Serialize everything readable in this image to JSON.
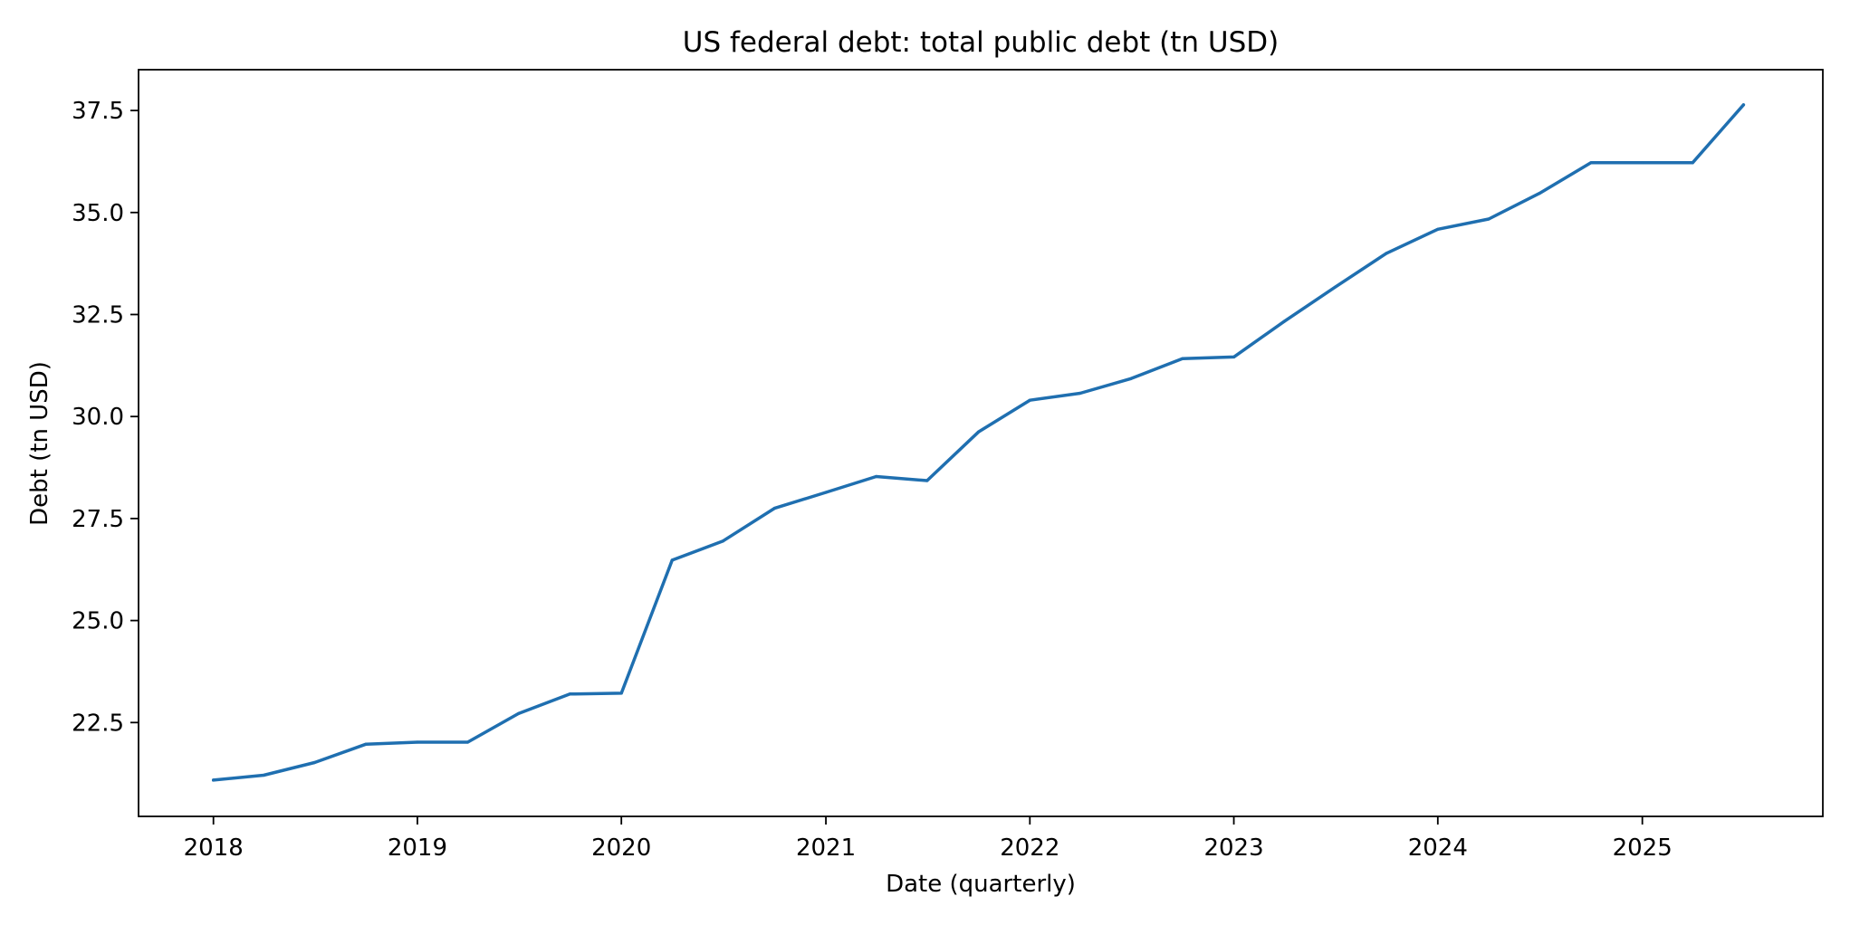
{
  "chart_data": {
    "type": "line",
    "title": "US federal debt: total public debt (tn USD)",
    "xlabel": "Date (quarterly)",
    "ylabel": "Debt (tn USD)",
    "x_ticks": [
      "2018",
      "2019",
      "2020",
      "2021",
      "2022",
      "2023",
      "2024",
      "2025"
    ],
    "y_ticks": [
      "22.5",
      "25.0",
      "27.5",
      "30.0",
      "32.5",
      "35.0",
      "37.5"
    ],
    "xlim": [
      "2017-08-20",
      "2025-11-20"
    ],
    "ylim": [
      20.2,
      38.5
    ],
    "grid": false,
    "legend": "none",
    "colors": {
      "line": "#1f6fb0",
      "axes": "#000000"
    },
    "series": [
      {
        "x": [
          "2018-01-01",
          "2018-04-01",
          "2018-07-01",
          "2018-10-01",
          "2019-01-01",
          "2019-04-01",
          "2019-07-01",
          "2019-10-01",
          "2020-01-01",
          "2020-04-01",
          "2020-07-01",
          "2020-10-01",
          "2021-01-01",
          "2021-04-01",
          "2021-07-01",
          "2021-10-01",
          "2022-01-01",
          "2022-04-01",
          "2022-07-01",
          "2022-10-01",
          "2023-01-01",
          "2023-04-01",
          "2023-07-01",
          "2023-10-01",
          "2024-01-01",
          "2024-04-01",
          "2024-07-01",
          "2024-10-01",
          "2025-01-01",
          "2025-04-01",
          "2025-07-01"
        ],
        "values": [
          21.09,
          21.21,
          21.52,
          21.97,
          22.02,
          22.02,
          22.72,
          23.2,
          23.22,
          26.48,
          26.95,
          27.75,
          28.14,
          28.53,
          28.43,
          29.62,
          30.4,
          30.57,
          30.93,
          31.42,
          31.46,
          32.33,
          33.17,
          34.0,
          34.59,
          34.84,
          35.47,
          36.22,
          36.22,
          36.22,
          37.64
        ]
      }
    ]
  }
}
